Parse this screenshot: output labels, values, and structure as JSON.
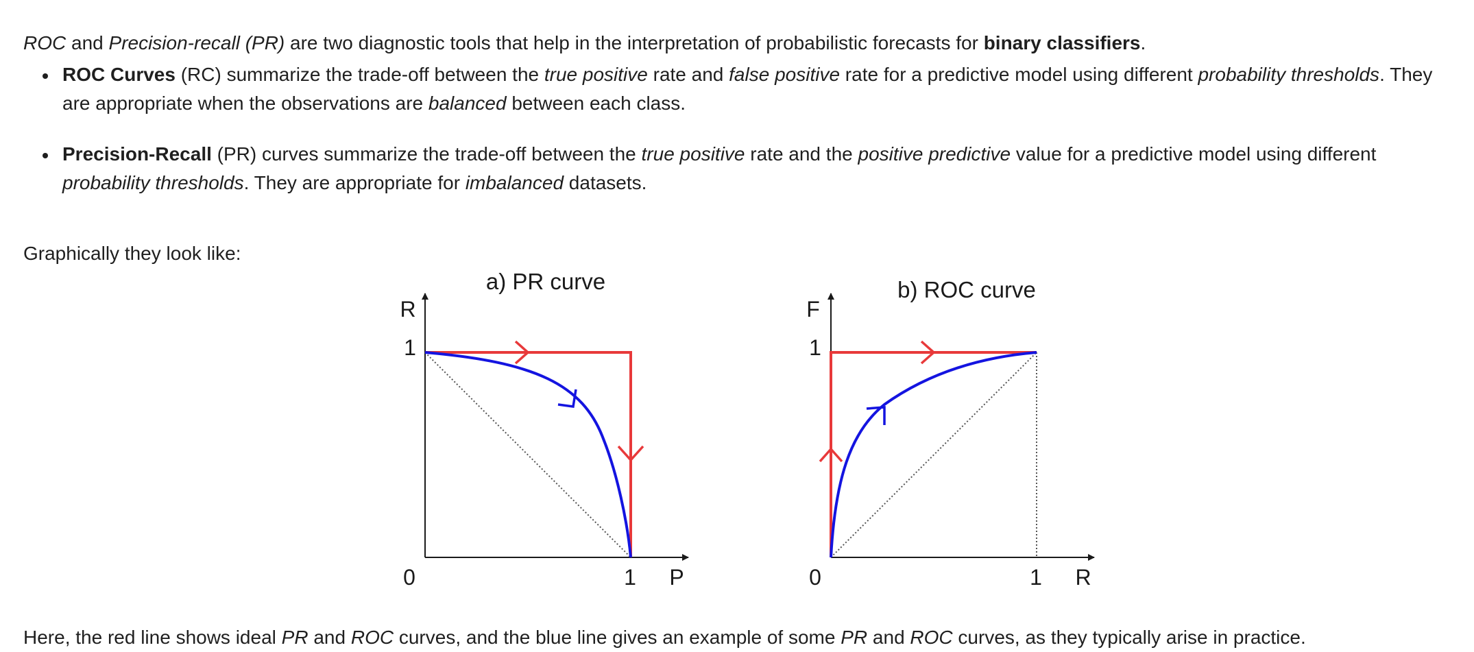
{
  "intro": {
    "roc": "ROC",
    "and": " and ",
    "pr_full": "Precision-recall (PR)",
    "middle": " are two diagnostic tools that help in the interpretation of probabilistic forecasts for ",
    "binary": "binary classifiers",
    "end": "."
  },
  "bullets": [
    {
      "bold": "ROC Curves",
      "t1": " (RC) summarize the trade-off between the ",
      "i1": "true positive",
      "t2": " rate and ",
      "i2": "false positive",
      "t3": " rate for a predictive model using different ",
      "i3": "probability thresholds",
      "t4": ". They are appropriate when the observations are ",
      "i4": "balanced",
      "t5": " between each class."
    },
    {
      "bold": "Precision-Recall",
      "t1": " (PR) curves summarize the trade-off between the ",
      "i1": "true positive",
      "t2": " rate and the ",
      "i2": "positive predictive",
      "t3": " value for a predictive model using different ",
      "i3": "probability thresholds",
      "t4": ". They are appropriate for ",
      "i4": "imbalanced",
      "t5": " datasets."
    }
  ],
  "graphically": "Graphically they look like:",
  "figure": {
    "pr": {
      "title": "a)  PR curve",
      "y_axis": "R",
      "x_axis": "P",
      "tick_one_y": "1",
      "tick_zero": "0",
      "tick_one_x": "1"
    },
    "roc": {
      "title": "b) ROC curve",
      "y_axis": "F",
      "x_axis": "R",
      "tick_one_y": "1",
      "tick_zero": "0",
      "tick_one_x": "1"
    },
    "colors": {
      "ideal": "#e8393a",
      "example": "#1414e0",
      "axis": "#1a1a1a",
      "diagonal": "#555555"
    }
  },
  "closing": {
    "t1": "Here, the red line shows ideal ",
    "i1": "PR",
    "t2": " and ",
    "i2": "ROC",
    "t3": " curves, and the blue line gives an example of some ",
    "i3": "PR",
    "t4": " and ",
    "i4": "ROC",
    "t5": " curves, as they typically arise in practice."
  }
}
